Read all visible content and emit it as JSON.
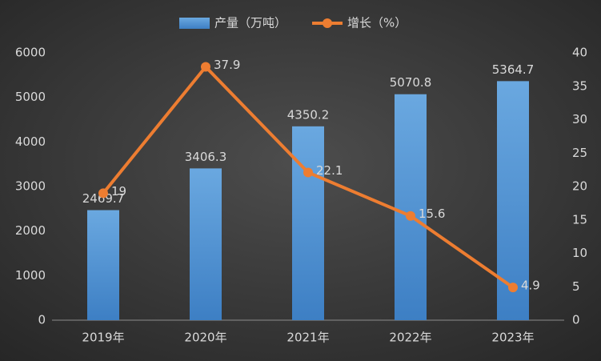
{
  "chart_data": {
    "type": "combo",
    "categories": [
      "2019年",
      "2020年",
      "2021年",
      "2022年",
      "2023年"
    ],
    "series": [
      {
        "name": "产量（万吨）",
        "type": "bar",
        "color": "#5b9bd5",
        "values": [
          2469.7,
          3406.3,
          4350.2,
          5070.8,
          5364.7
        ]
      },
      {
        "name": "增长（%）",
        "type": "line",
        "axis": "y2",
        "color": "#ed7d31",
        "values": [
          19,
          37.9,
          22.1,
          15.6,
          4.9
        ]
      }
    ],
    "ylim": [
      0,
      6000
    ],
    "yticks": [
      0,
      1000,
      2000,
      3000,
      4000,
      5000,
      6000
    ],
    "y2lim": [
      0,
      40
    ],
    "y2ticks": [
      0,
      5,
      10,
      15,
      20,
      25,
      30,
      35,
      40
    ],
    "grid": false,
    "legend": "top"
  }
}
